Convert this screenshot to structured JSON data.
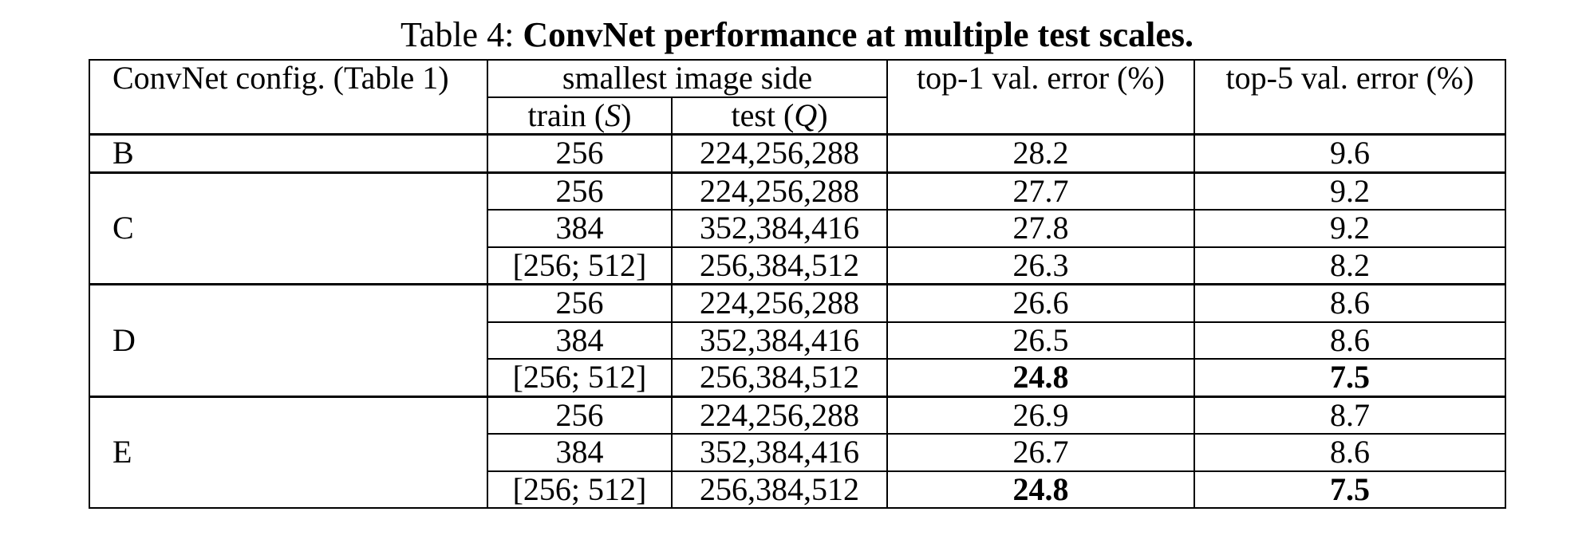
{
  "caption": {
    "prefix": "Table 4:",
    "title": "ConvNet performance at multiple test scales."
  },
  "table": {
    "headers": {
      "config": "ConvNet config. (Table 1)",
      "image_side": "smallest image side",
      "train_label": "train (",
      "train_var": "S",
      "test_label": "test (",
      "test_var": "Q",
      "close_paren": ")",
      "top1": "top-1 val. error (%)",
      "top5": "top-5 val. error (%)"
    },
    "groups": [
      {
        "config": "B",
        "rows": [
          {
            "train": "256",
            "test": "224,256,288",
            "top1": "28.2",
            "top5": "9.6",
            "best": false
          }
        ]
      },
      {
        "config": "C",
        "rows": [
          {
            "train": "256",
            "test": "224,256,288",
            "top1": "27.7",
            "top5": "9.2",
            "best": false
          },
          {
            "train": "384",
            "test": "352,384,416",
            "top1": "27.8",
            "top5": "9.2",
            "best": false
          },
          {
            "train": "[256; 512]",
            "test": "256,384,512",
            "top1": "26.3",
            "top5": "8.2",
            "best": false
          }
        ]
      },
      {
        "config": "D",
        "rows": [
          {
            "train": "256",
            "test": "224,256,288",
            "top1": "26.6",
            "top5": "8.6",
            "best": false
          },
          {
            "train": "384",
            "test": "352,384,416",
            "top1": "26.5",
            "top5": "8.6",
            "best": false
          },
          {
            "train": "[256; 512]",
            "test": "256,384,512",
            "top1": "24.8",
            "top5": "7.5",
            "best": true
          }
        ]
      },
      {
        "config": "E",
        "rows": [
          {
            "train": "256",
            "test": "224,256,288",
            "top1": "26.9",
            "top5": "8.7",
            "best": false
          },
          {
            "train": "384",
            "test": "352,384,416",
            "top1": "26.7",
            "top5": "8.6",
            "best": false
          },
          {
            "train": "[256; 512]",
            "test": "256,384,512",
            "top1": "24.8",
            "top5": "7.5",
            "best": true
          }
        ]
      }
    ]
  }
}
